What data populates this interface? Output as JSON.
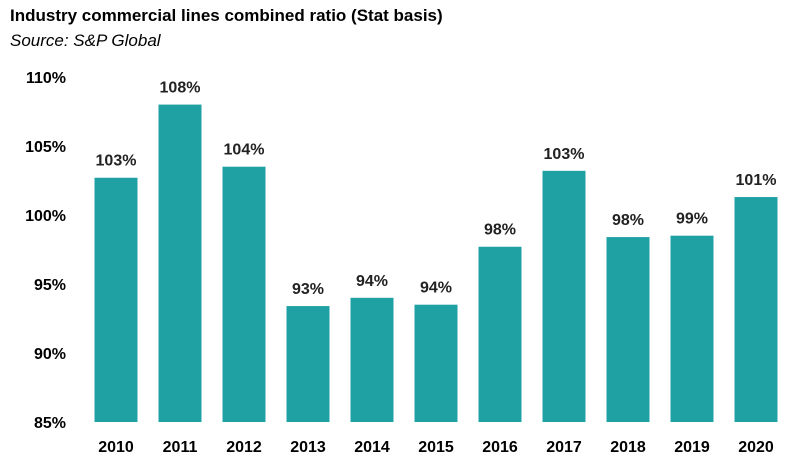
{
  "chart_data": {
    "type": "bar",
    "title": "Industry commercial lines combined ratio (Stat basis)",
    "subtitle": "Source: S&P Global",
    "xlabel": "",
    "ylabel": "",
    "categories": [
      "2010",
      "2011",
      "2012",
      "2013",
      "2014",
      "2015",
      "2016",
      "2017",
      "2018",
      "2019",
      "2020"
    ],
    "values": [
      102.7,
      108.0,
      103.5,
      93.4,
      94.0,
      93.5,
      97.7,
      103.2,
      98.4,
      98.5,
      101.3
    ],
    "data_labels": [
      "103%",
      "108%",
      "104%",
      "93%",
      "94%",
      "94%",
      "98%",
      "103%",
      "98%",
      "99%",
      "101%"
    ],
    "ylim": [
      85,
      110
    ],
    "yticks": [
      85,
      90,
      95,
      100,
      105,
      110
    ],
    "ytick_labels": [
      "85%",
      "90%",
      "95%",
      "100%",
      "105%",
      "110%"
    ],
    "grid": false,
    "bar_color": "#1fa1a4"
  }
}
